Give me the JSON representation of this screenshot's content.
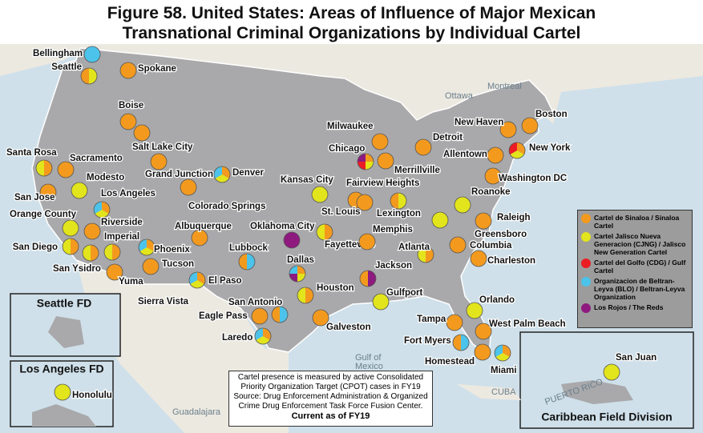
{
  "title": [
    "Figure 58. United States: Areas of Influence of Major Mexican",
    "Transnational Criminal Organizations by Individual Cartel"
  ],
  "legend": [
    {
      "label": "Cartel de Sinaloa / Sinaloa Cartel",
      "color": "#f39a1e"
    },
    {
      "label": "Cartel Jalisco Nueva Generacion (CJNG) / Jalisco New Generation Cartel",
      "color": "#e2e41c"
    },
    {
      "label": "Cartel del Golfo (CDG) / Gulf Cartel",
      "color": "#ec1c24"
    },
    {
      "label": "Organizacion de Beltran-Leyva (BLO) / Beltran-Leyva Organization",
      "color": "#4cc3ea"
    },
    {
      "label": "Los Rojos / The Reds",
      "color": "#8e1a7f"
    }
  ],
  "cities": [
    {
      "name": "Bellingham",
      "cartels": [
        3
      ]
    },
    {
      "name": "Seattle",
      "cartels": [
        1,
        0
      ]
    },
    {
      "name": "Spokane",
      "cartels": [
        0
      ]
    },
    {
      "name": "Boise",
      "cartels": [
        0
      ]
    },
    {
      "name": "Santa Rosa",
      "cartels": [
        0,
        1
      ]
    },
    {
      "name": "Sacramento",
      "cartels": [
        0
      ]
    },
    {
      "name": "San Jose",
      "cartels": [
        0
      ]
    },
    {
      "name": "Modesto",
      "cartels": [
        1
      ]
    },
    {
      "name": "Los Angeles",
      "cartels": [
        0,
        1,
        3
      ]
    },
    {
      "name": "Orange County",
      "cartels": [
        1
      ]
    },
    {
      "name": "Riverside",
      "cartels": [
        0
      ]
    },
    {
      "name": "Imperial",
      "cartels": [
        0,
        1
      ]
    },
    {
      "name": "San Diego",
      "cartels": [
        0,
        1
      ]
    },
    {
      "name": "San Ysidro",
      "cartels": [
        0,
        1
      ]
    },
    {
      "name": "Yuma",
      "cartels": [
        0
      ]
    },
    {
      "name": "Phoenix",
      "cartels": [
        0,
        1,
        3
      ]
    },
    {
      "name": "Tucson",
      "cartels": [
        0
      ]
    },
    {
      "name": "Sierra Vista",
      "cartels": []
    },
    {
      "name": "Salt Lake City",
      "cartels": [
        0
      ]
    },
    {
      "name": "Grand Junction",
      "cartels": [
        0
      ]
    },
    {
      "name": "Denver",
      "cartels": [
        0,
        1,
        3
      ]
    },
    {
      "name": "Colorado Springs",
      "cartels": [
        0
      ]
    },
    {
      "name": "Albuquerque",
      "cartels": [
        0
      ]
    },
    {
      "name": "El Paso",
      "cartels": [
        0,
        1,
        3
      ]
    },
    {
      "name": "Lubbock",
      "cartels": [
        3,
        0
      ]
    },
    {
      "name": "Oklahoma City",
      "cartels": [
        4
      ]
    },
    {
      "name": "Dallas",
      "cartels": [
        0,
        1,
        4,
        3
      ]
    },
    {
      "name": "Houston",
      "cartels": [
        0,
        1
      ]
    },
    {
      "name": "San Antonio",
      "cartels": [
        3,
        0
      ]
    },
    {
      "name": "Eagle Pass",
      "cartels": [
        0
      ]
    },
    {
      "name": "Laredo",
      "cartels": [
        0,
        1,
        3
      ]
    },
    {
      "name": "Galveston",
      "cartels": [
        0
      ]
    },
    {
      "name": "Kansas City",
      "cartels": [
        1
      ]
    },
    {
      "name": "St. Louis",
      "cartels": [
        0
      ]
    },
    {
      "name": "Fayetteville",
      "cartels": [
        0,
        1
      ]
    },
    {
      "name": "Memphis",
      "cartels": [
        0
      ]
    },
    {
      "name": "Jackson",
      "cartels": [
        4,
        0
      ]
    },
    {
      "name": "Gulfport",
      "cartels": [
        1
      ]
    },
    {
      "name": "Milwaukee",
      "cartels": [
        0
      ]
    },
    {
      "name": "Chicago",
      "cartels": [
        0,
        1,
        2,
        4
      ]
    },
    {
      "name": "Merrillville",
      "cartels": [
        0
      ]
    },
    {
      "name": "Fairview Heights",
      "cartels": [
        0
      ]
    },
    {
      "name": "Lexington",
      "cartels": [
        1,
        0
      ]
    },
    {
      "name": "Detroit",
      "cartels": [
        0
      ]
    },
    {
      "name": "Atlanta",
      "cartels": [
        0,
        1
      ]
    },
    {
      "name": "Roanoke",
      "cartels": [
        1
      ]
    },
    {
      "name": "Raleigh",
      "cartels": [
        0
      ]
    },
    {
      "name": "Greensboro",
      "cartels": [
        1
      ]
    },
    {
      "name": "Columbia",
      "cartels": [
        0
      ]
    },
    {
      "name": "Charleston",
      "cartels": [
        0
      ]
    },
    {
      "name": "Allentown",
      "cartels": [
        0
      ]
    },
    {
      "name": "New Haven",
      "cartels": [
        0
      ]
    },
    {
      "name": "Boston",
      "cartels": [
        0
      ]
    },
    {
      "name": "New York",
      "cartels": [
        0,
        1,
        2
      ]
    },
    {
      "name": "Washington DC",
      "cartels": [
        0
      ]
    },
    {
      "name": "Orlando",
      "cartels": [
        1
      ]
    },
    {
      "name": "Tampa",
      "cartels": [
        0
      ]
    },
    {
      "name": "West Palm Beach",
      "cartels": [
        0
      ]
    },
    {
      "name": "Fort Myers",
      "cartels": [
        3,
        0
      ]
    },
    {
      "name": "Homestead",
      "cartels": [
        0
      ]
    },
    {
      "name": "Miami",
      "cartels": [
        0,
        1,
        3
      ]
    },
    {
      "name": "Honolulu",
      "cartels": [
        1
      ]
    },
    {
      "name": "San Juan",
      "cartels": [
        1
      ]
    }
  ],
  "insets": [
    "Seattle FD",
    "Los Angeles FD",
    "Caribbean Field Division"
  ],
  "map_labels": [
    "Ottawa",
    "Montreal",
    "Gulf of",
    "Mexico",
    "CUBA",
    "Guadalajara",
    "PUERTO RICO"
  ],
  "note": {
    "text": "Cartel presence is measured by active Consolidated Priority Organization Target (CPOT) cases in FY19 Source: Drug Enforcement Administration & Organized Crime Drug Enforcement Task Force Fusion Center.",
    "emphasis": "Current as of FY19"
  }
}
